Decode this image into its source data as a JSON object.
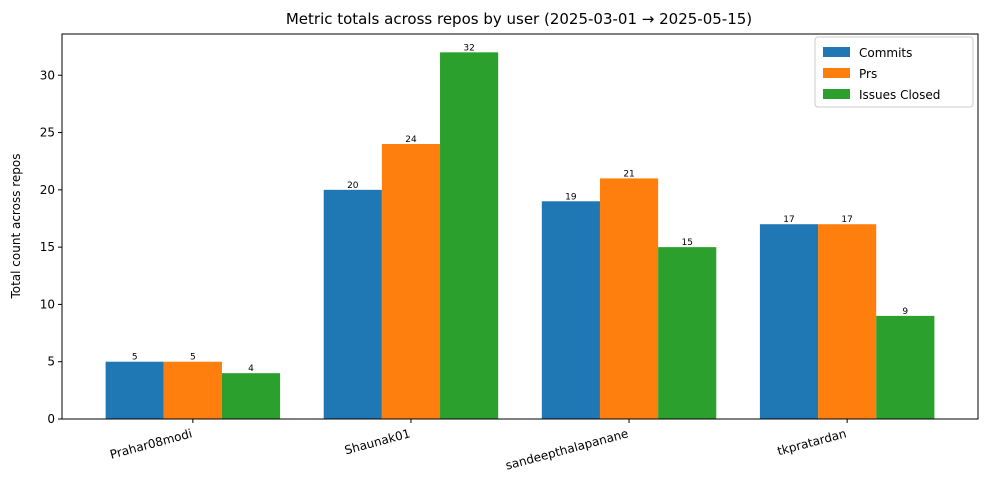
{
  "chart_data": {
    "type": "bar",
    "title": "Metric totals across repos by user (2025-03-01 → 2025-05-15)",
    "xlabel": "",
    "ylabel": "Total count across repos",
    "categories": [
      "Prahar08modi",
      "Shaunak01",
      "sandeepthalapanane",
      "tkpratardan"
    ],
    "series": [
      {
        "name": "Commits",
        "values": [
          5,
          20,
          19,
          17
        ],
        "color": "#1f77b4"
      },
      {
        "name": "Prs",
        "values": [
          5,
          24,
          21,
          17
        ],
        "color": "#ff7f0e"
      },
      {
        "name": "Issues Closed",
        "values": [
          4,
          32,
          15,
          9
        ],
        "color": "#2ca02c"
      }
    ],
    "ylim": [
      0,
      33.6
    ],
    "yticks": [
      0,
      5,
      10,
      15,
      20,
      25,
      30
    ],
    "grid": false,
    "legend_position": "top-right"
  }
}
